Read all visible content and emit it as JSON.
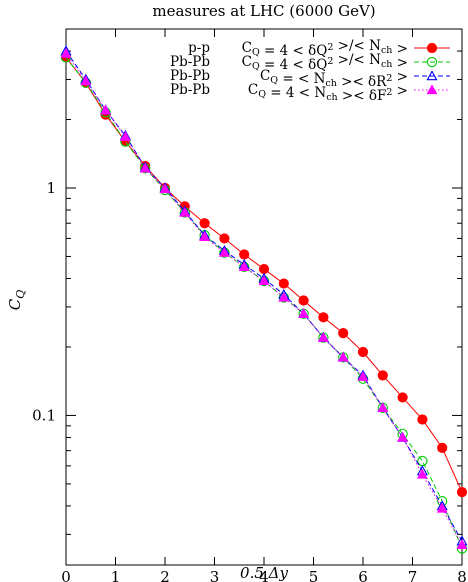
{
  "chart_data": {
    "type": "line",
    "title": "measures at LHC (6000 GeV)",
    "xlabel": "0.5 Δy",
    "ylabel": "C_Q",
    "xlim": [
      0,
      8
    ],
    "ylim": [
      0.022,
      5.0
    ],
    "yscale": "log",
    "xticks": [
      0,
      1,
      2,
      3,
      4,
      5,
      6,
      7,
      8
    ],
    "yticks": [
      {
        "value": 0.1,
        "label": "0.1"
      },
      {
        "value": 1,
        "label": "1"
      }
    ],
    "grid": false,
    "legend_position": "top-right",
    "x": [
      0.0,
      0.4,
      0.8,
      1.2,
      1.6,
      2.0,
      2.4,
      2.8,
      3.2,
      3.6,
      4.0,
      4.4,
      4.8,
      5.2,
      5.6,
      6.0,
      6.4,
      6.8,
      7.2,
      7.6,
      8.0
    ],
    "series": [
      {
        "label": "p-p",
        "formula": "C_Q = 4 < δQ² >/< N_ch >",
        "color": "#ff0000",
        "marker": "filled-circle",
        "line": "solid",
        "values": [
          3.75,
          2.9,
          2.1,
          1.6,
          1.25,
          1.0,
          0.83,
          0.7,
          0.6,
          0.51,
          0.44,
          0.38,
          0.32,
          0.27,
          0.23,
          0.19,
          0.15,
          0.12,
          0.096,
          0.072,
          0.046
        ]
      },
      {
        "label": "Pb-Pb",
        "formula": "C_Q = 4 < δQ² >/< N_ch >",
        "color": "#00cc00",
        "marker": "open-circle",
        "line": "dashed",
        "values": [
          3.75,
          2.9,
          2.15,
          1.6,
          1.22,
          0.98,
          0.78,
          0.62,
          0.52,
          0.45,
          0.39,
          0.33,
          0.28,
          0.22,
          0.18,
          0.145,
          0.108,
          0.083,
          0.063,
          0.042,
          0.026
        ]
      },
      {
        "label": "Pb-Pb",
        "formula": "C_Q = < N_ch >< δR² >",
        "color": "#0000ff",
        "marker": "open-triangle",
        "line": "dashed",
        "values": [
          4.0,
          3.0,
          2.2,
          1.7,
          1.23,
          1.0,
          0.79,
          0.62,
          0.53,
          0.46,
          0.4,
          0.34,
          0.28,
          0.22,
          0.18,
          0.15,
          0.108,
          0.08,
          0.057,
          0.04,
          0.028
        ]
      },
      {
        "label": "Pb-Pb",
        "formula": "C_Q = 4 < N_ch >< δF² >",
        "color": "#ff00ff",
        "marker": "filled-triangle",
        "line": "dotted",
        "values": [
          3.9,
          2.95,
          2.2,
          1.68,
          1.22,
          0.99,
          0.78,
          0.61,
          0.52,
          0.45,
          0.39,
          0.33,
          0.28,
          0.22,
          0.18,
          0.148,
          0.108,
          0.08,
          0.055,
          0.039,
          0.027
        ]
      }
    ]
  }
}
